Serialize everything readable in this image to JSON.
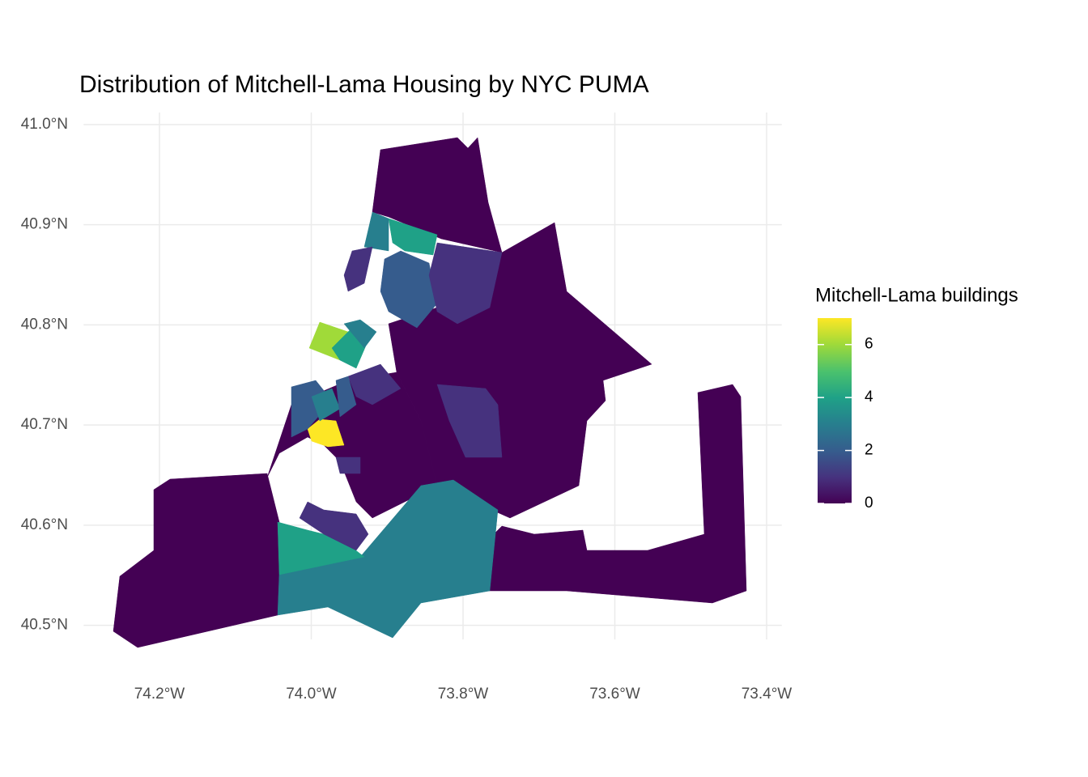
{
  "chart_data": {
    "type": "choropleth",
    "title": "Distribution of Mitchell-Lama Housing by NYC PUMA",
    "xlim": [
      -74.3,
      -73.38
    ],
    "ylim": [
      40.486,
      41.012
    ],
    "xticks": [
      {
        "value": -74.2,
        "label": "74.2°W"
      },
      {
        "value": -74.0,
        "label": "74.0°W"
      },
      {
        "value": -73.8,
        "label": "73.8°W"
      },
      {
        "value": -73.6,
        "label": "73.6°W"
      },
      {
        "value": -73.4,
        "label": "73.4°W"
      }
    ],
    "yticks": [
      {
        "value": 40.5,
        "label": "40.5°N"
      },
      {
        "value": 40.6,
        "label": "40.6°N"
      },
      {
        "value": 40.7,
        "label": "40.7°N"
      },
      {
        "value": 40.8,
        "label": "40.8°N"
      },
      {
        "value": 40.9,
        "label": "40.9°N"
      },
      {
        "value": 41.0,
        "label": "41.0°N"
      }
    ],
    "grid": true,
    "values": [
      0,
      0,
      0,
      0,
      0,
      7,
      6,
      3,
      4,
      1,
      1,
      2,
      1,
      4,
      3,
      1,
      4,
      2,
      3,
      1,
      2,
      1,
      3
    ],
    "color_scale": "viridis",
    "legend_title": "Mitchell-Lama buildings",
    "legend_lim": [
      0,
      7
    ],
    "legend_ticks": [
      0,
      2,
      4,
      6
    ]
  }
}
